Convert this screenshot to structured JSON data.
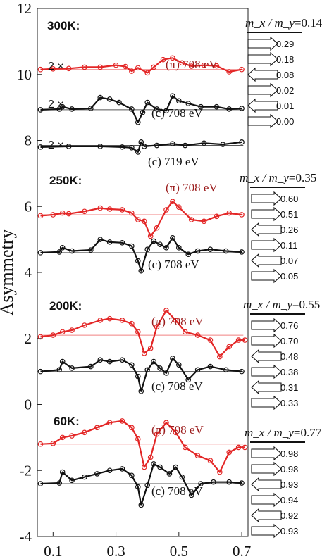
{
  "chart_data": {
    "type": "line",
    "ylabel": "Asymmetry",
    "xlim": [
      0.05,
      0.72
    ],
    "ylim": [
      -4,
      12
    ],
    "xticks": [
      "0.1",
      "0.3",
      "0.5",
      "0.7"
    ],
    "yticks": [
      "12",
      "10",
      "8",
      "6",
      "4",
      "2",
      "0",
      "-2",
      "-4"
    ],
    "colors": {
      "pi": "#e32626",
      "c": "#111111",
      "pi_label": "#9b1c1c",
      "baseline_pi": "#f08080",
      "baseline_c": "#555555"
    },
    "panels": [
      {
        "temperature": "300K:",
        "mx_my_label": "m_x / m_y",
        "mx_my_value": "=0.14",
        "layer_values": [
          "0.29",
          "0.18",
          "0.08",
          "0.02",
          "0.01",
          "0.00"
        ],
        "arrow_directions": [
          "right",
          "right",
          "left",
          "right",
          "left",
          "right"
        ],
        "curves": [
          {
            "name": "(π) 708 eV",
            "polarization": "pi",
            "multiplier": "2 ×",
            "baseline": 10.15,
            "points": [
              [
                0.06,
                10.15
              ],
              [
                0.1,
                10.17
              ],
              [
                0.15,
                10.18
              ],
              [
                0.2,
                10.22
              ],
              [
                0.25,
                10.22
              ],
              [
                0.3,
                10.28
              ],
              [
                0.33,
                10.24
              ],
              [
                0.35,
                10.1
              ],
              [
                0.37,
                10.2
              ],
              [
                0.4,
                10.05
              ],
              [
                0.42,
                10.22
              ],
              [
                0.45,
                10.45
              ],
              [
                0.48,
                10.5
              ],
              [
                0.51,
                10.35
              ],
              [
                0.54,
                10.25
              ],
              [
                0.58,
                10.28
              ],
              [
                0.62,
                10.26
              ],
              [
                0.66,
                10.08
              ],
              [
                0.7,
                10.15
              ]
            ]
          },
          {
            "name": "(c) 708 eV",
            "polarization": "c",
            "multiplier": "2 ×",
            "baseline": 8.93,
            "points": [
              [
                0.06,
                8.93
              ],
              [
                0.12,
                8.95
              ],
              [
                0.13,
                9.02
              ],
              [
                0.16,
                8.95
              ],
              [
                0.22,
                8.97
              ],
              [
                0.25,
                9.3
              ],
              [
                0.28,
                9.25
              ],
              [
                0.31,
                9.15
              ],
              [
                0.35,
                8.95
              ],
              [
                0.37,
                8.55
              ],
              [
                0.385,
                8.85
              ],
              [
                0.4,
                9.15
              ],
              [
                0.43,
                8.95
              ],
              [
                0.46,
                8.9
              ],
              [
                0.48,
                9.35
              ],
              [
                0.5,
                9.2
              ],
              [
                0.53,
                9.12
              ],
              [
                0.57,
                9.02
              ],
              [
                0.62,
                9.02
              ],
              [
                0.66,
                8.95
              ],
              [
                0.7,
                8.97
              ]
            ]
          },
          {
            "name": "(c) 719 eV",
            "polarization": "c",
            "multiplier": "2 ×",
            "baseline": 7.85,
            "points": [
              [
                0.06,
                7.8
              ],
              [
                0.15,
                7.82
              ],
              [
                0.25,
                7.82
              ],
              [
                0.32,
                7.8
              ],
              [
                0.35,
                7.78
              ],
              [
                0.37,
                7.65
              ],
              [
                0.38,
                7.95
              ],
              [
                0.39,
                7.82
              ],
              [
                0.43,
                7.85
              ],
              [
                0.48,
                7.9
              ],
              [
                0.52,
                7.85
              ],
              [
                0.58,
                7.92
              ],
              [
                0.64,
                7.88
              ],
              [
                0.7,
                7.95
              ]
            ]
          }
        ]
      },
      {
        "temperature": "250K:",
        "mx_my_label": "m_x / m_y",
        "mx_my_value": "=0.35",
        "layer_values": [
          "0.60",
          "0.51",
          "0.26",
          "0.11",
          "0.07",
          "0.05"
        ],
        "arrow_directions": [
          "right",
          "right",
          "left",
          "right",
          "left",
          "right"
        ],
        "curves": [
          {
            "name": "(π) 708 eV",
            "polarization": "pi",
            "multiplier": "",
            "baseline": 5.75,
            "points": [
              [
                0.06,
                5.72
              ],
              [
                0.1,
                5.75
              ],
              [
                0.13,
                5.8
              ],
              [
                0.15,
                5.78
              ],
              [
                0.2,
                5.85
              ],
              [
                0.25,
                5.95
              ],
              [
                0.28,
                5.92
              ],
              [
                0.32,
                5.9
              ],
              [
                0.35,
                5.8
              ],
              [
                0.37,
                5.6
              ],
              [
                0.39,
                5.55
              ],
              [
                0.41,
                5.1
              ],
              [
                0.43,
                5.35
              ],
              [
                0.46,
                5.9
              ],
              [
                0.48,
                6.15
              ],
              [
                0.5,
                5.98
              ],
              [
                0.54,
                5.6
              ],
              [
                0.58,
                5.55
              ],
              [
                0.62,
                5.7
              ],
              [
                0.66,
                5.8
              ],
              [
                0.7,
                5.75
              ]
            ]
          },
          {
            "name": "(c) 708 eV",
            "polarization": "c",
            "multiplier": "",
            "baseline": 4.6,
            "points": [
              [
                0.06,
                4.6
              ],
              [
                0.12,
                4.62
              ],
              [
                0.13,
                4.75
              ],
              [
                0.16,
                4.65
              ],
              [
                0.22,
                4.68
              ],
              [
                0.25,
                5.0
              ],
              [
                0.28,
                4.92
              ],
              [
                0.32,
                4.9
              ],
              [
                0.35,
                4.8
              ],
              [
                0.37,
                4.35
              ],
              [
                0.38,
                4.05
              ],
              [
                0.4,
                4.7
              ],
              [
                0.42,
                4.95
              ],
              [
                0.44,
                4.85
              ],
              [
                0.46,
                4.75
              ],
              [
                0.48,
                5.05
              ],
              [
                0.5,
                4.75
              ],
              [
                0.53,
                4.55
              ],
              [
                0.56,
                4.65
              ],
              [
                0.6,
                4.7
              ],
              [
                0.65,
                4.65
              ],
              [
                0.7,
                4.62
              ]
            ]
          }
        ]
      },
      {
        "temperature": "200K:",
        "mx_my_label": "m_x / m_y",
        "mx_my_value": "=0.55",
        "layer_values": [
          "0.76",
          "0.70",
          "0.48",
          "0.38",
          "0.31",
          "0.33"
        ],
        "arrow_directions": [
          "right",
          "right",
          "left",
          "right",
          "left",
          "right"
        ],
        "curves": [
          {
            "name": "(π) 708 eV",
            "polarization": "pi",
            "multiplier": "",
            "baseline": 2.1,
            "points": [
              [
                0.06,
                2.05
              ],
              [
                0.1,
                2.1
              ],
              [
                0.13,
                2.2
              ],
              [
                0.16,
                2.25
              ],
              [
                0.2,
                2.4
              ],
              [
                0.25,
                2.55
              ],
              [
                0.28,
                2.6
              ],
              [
                0.32,
                2.55
              ],
              [
                0.35,
                2.45
              ],
              [
                0.37,
                2.2
              ],
              [
                0.39,
                1.55
              ],
              [
                0.41,
                1.7
              ],
              [
                0.43,
                2.35
              ],
              [
                0.46,
                2.85
              ],
              [
                0.49,
                2.55
              ],
              [
                0.52,
                2.2
              ],
              [
                0.56,
                2.1
              ],
              [
                0.6,
                1.95
              ],
              [
                0.63,
                1.45
              ],
              [
                0.66,
                1.75
              ],
              [
                0.69,
                1.95
              ],
              [
                0.71,
                1.95
              ]
            ]
          },
          {
            "name": "(c) 708 eV",
            "polarization": "c",
            "multiplier": "",
            "baseline": 1.0,
            "points": [
              [
                0.06,
                1.0
              ],
              [
                0.12,
                1.05
              ],
              [
                0.13,
                1.3
              ],
              [
                0.16,
                1.1
              ],
              [
                0.22,
                1.15
              ],
              [
                0.25,
                1.35
              ],
              [
                0.28,
                1.3
              ],
              [
                0.32,
                1.35
              ],
              [
                0.35,
                1.2
              ],
              [
                0.37,
                0.85
              ],
              [
                0.38,
                0.4
              ],
              [
                0.4,
                1.05
              ],
              [
                0.42,
                1.3
              ],
              [
                0.44,
                1.1
              ],
              [
                0.46,
                0.95
              ],
              [
                0.48,
                1.4
              ],
              [
                0.5,
                1.2
              ],
              [
                0.53,
                0.75
              ],
              [
                0.56,
                1.05
              ],
              [
                0.6,
                1.15
              ],
              [
                0.65,
                1.05
              ],
              [
                0.7,
                1.0
              ]
            ]
          }
        ]
      },
      {
        "temperature": "60K:",
        "mx_my_label": "m_x / m_y",
        "mx_my_value": "=0.77",
        "layer_values": [
          "0.98",
          "0.98",
          "0.93",
          "0.94",
          "0.92",
          "0.93"
        ],
        "arrow_directions": [
          "right",
          "right",
          "left",
          "right",
          "left",
          "right"
        ],
        "curves": [
          {
            "name": "(π) 708 eV",
            "polarization": "pi",
            "multiplier": "",
            "baseline": -1.2,
            "points": [
              [
                0.06,
                -1.2
              ],
              [
                0.1,
                -1.18
              ],
              [
                0.13,
                -1.0
              ],
              [
                0.16,
                -0.95
              ],
              [
                0.2,
                -0.85
              ],
              [
                0.24,
                -0.7
              ],
              [
                0.28,
                -0.55
              ],
              [
                0.32,
                -0.5
              ],
              [
                0.35,
                -0.7
              ],
              [
                0.37,
                -1.05
              ],
              [
                0.39,
                -1.9
              ],
              [
                0.41,
                -1.6
              ],
              [
                0.43,
                -0.9
              ],
              [
                0.46,
                -0.55
              ],
              [
                0.49,
                -0.85
              ],
              [
                0.52,
                -1.3
              ],
              [
                0.56,
                -1.55
              ],
              [
                0.6,
                -1.7
              ],
              [
                0.63,
                -2.05
              ],
              [
                0.66,
                -1.45
              ],
              [
                0.69,
                -1.3
              ],
              [
                0.71,
                -1.3
              ]
            ]
          },
          {
            "name": "(c) 708 eV",
            "polarization": "c",
            "multiplier": "",
            "baseline": -2.4,
            "points": [
              [
                0.06,
                -2.4
              ],
              [
                0.12,
                -2.38
              ],
              [
                0.13,
                -2.05
              ],
              [
                0.16,
                -2.3
              ],
              [
                0.2,
                -2.2
              ],
              [
                0.24,
                -2.1
              ],
              [
                0.28,
                -2.0
              ],
              [
                0.32,
                -1.95
              ],
              [
                0.35,
                -2.15
              ],
              [
                0.37,
                -2.5
              ],
              [
                0.38,
                -3.05
              ],
              [
                0.4,
                -2.45
              ],
              [
                0.42,
                -1.8
              ],
              [
                0.44,
                -1.9
              ],
              [
                0.47,
                -2.1
              ],
              [
                0.49,
                -1.9
              ],
              [
                0.51,
                -2.2
              ],
              [
                0.54,
                -2.75
              ],
              [
                0.57,
                -2.4
              ],
              [
                0.61,
                -2.35
              ],
              [
                0.66,
                -2.35
              ],
              [
                0.7,
                -2.38
              ]
            ]
          }
        ]
      }
    ]
  }
}
